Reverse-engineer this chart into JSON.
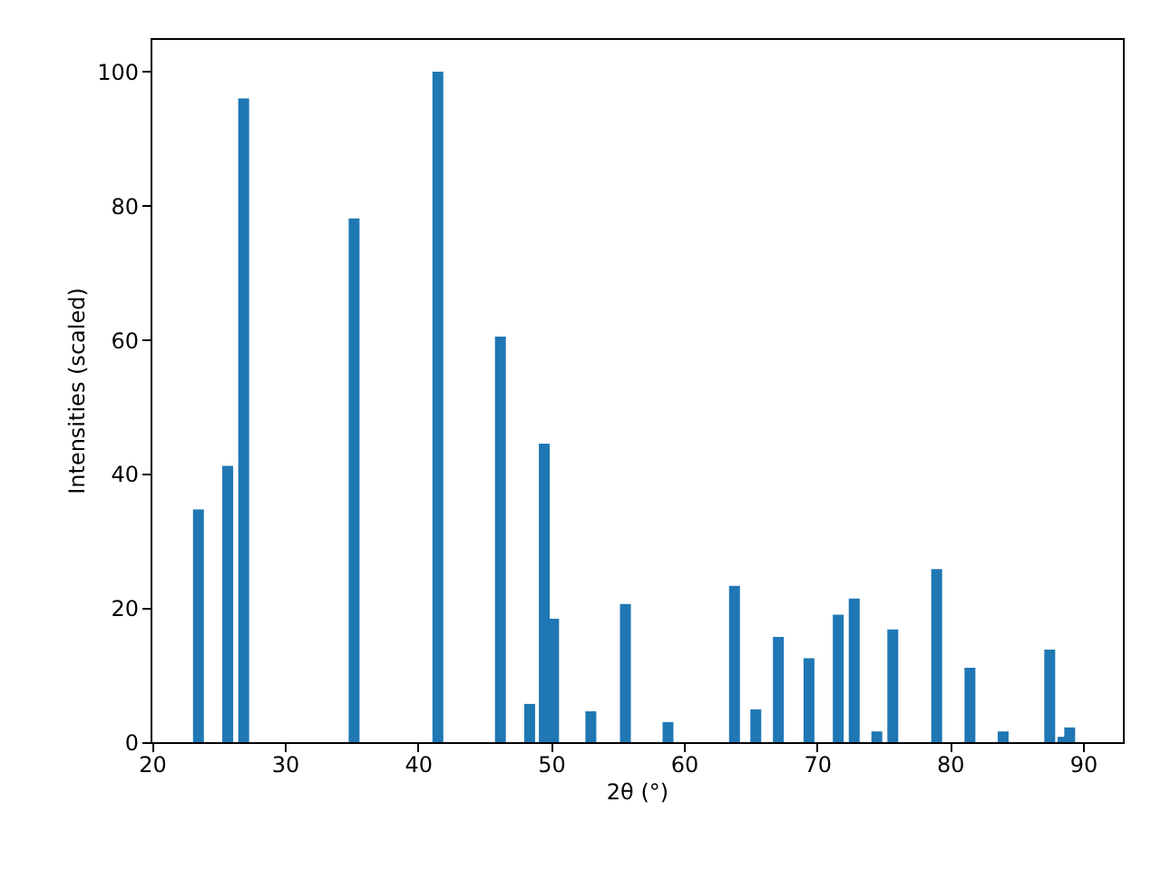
{
  "chart_data": {
    "type": "bar",
    "xlabel": "2θ (°)",
    "ylabel": "Intensities (scaled)",
    "x": [
      23.5,
      25.7,
      26.9,
      35.2,
      41.5,
      46.2,
      48.4,
      49.5,
      50.2,
      53.0,
      55.6,
      58.8,
      63.8,
      65.4,
      67.1,
      69.4,
      71.6,
      72.8,
      74.5,
      75.7,
      79.0,
      81.5,
      84.0,
      87.5,
      88.5,
      89.0
    ],
    "values": [
      34.7,
      41.2,
      96.0,
      78.1,
      100,
      60.5,
      5.7,
      44.5,
      18.4,
      4.6,
      20.6,
      3.0,
      23.3,
      4.9,
      15.7,
      12.5,
      19.0,
      21.4,
      1.6,
      16.8,
      25.8,
      11.1,
      1.6,
      13.8,
      0.8,
      2.2
    ],
    "color": "#1f77b4",
    "xlim": [
      19.9,
      93
    ],
    "xticks": [
      20,
      30,
      40,
      50,
      60,
      70,
      80,
      90
    ],
    "ylim": [
      0,
      105
    ],
    "yticks": [
      0,
      20,
      40,
      60,
      80,
      100
    ],
    "grid": false
  }
}
